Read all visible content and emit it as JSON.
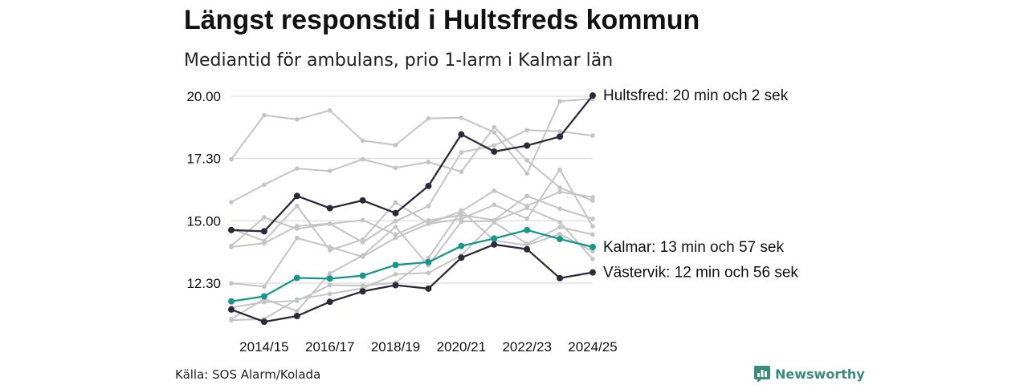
{
  "title": "Längst responstid i Hultsfreds kommun",
  "subtitle": "Mediantid för ambulans, prio 1-larm i Kalmar län",
  "source": "Källa: SOS Alarm/Kolada",
  "brand": "Newsworthy",
  "colors": {
    "highlight_dark": "#2b2a38",
    "kalmar": "#17968a",
    "background_lines": "#c4c4c4",
    "brand": "#3a8c7c"
  },
  "chart_data": {
    "type": "line",
    "y_axis": {
      "ticks": [
        "20.00",
        "17.30",
        "15.00",
        "12.30"
      ],
      "tick_values_minutes": [
        20,
        17.5,
        15,
        12.5
      ],
      "range_minutes": [
        10.8,
        20.4
      ],
      "grid": true
    },
    "x_axis": {
      "tick_labels": [
        "2014/15",
        "2016/17",
        "2018/19",
        "2020/21",
        "2022/23",
        "2024/25"
      ]
    },
    "seasons": [
      "2013/14",
      "2014/15",
      "2015/16",
      "2016/17",
      "2017/18",
      "2018/19",
      "2019/20",
      "2020/21",
      "2021/22",
      "2022/23",
      "2023/24",
      "2024/25"
    ],
    "series": [
      {
        "name": "Hultsfred",
        "label": "Hultsfred: 20 min och 2 sek",
        "emphasis": "dark",
        "values": [
          14.63,
          14.58,
          16.0,
          15.51,
          15.82,
          15.31,
          16.4,
          18.47,
          17.78,
          18.02,
          18.38,
          20.03
        ]
      },
      {
        "name": "Kalmar",
        "label": "Kalmar: 13 min och 57 sek",
        "emphasis": "accent",
        "values": [
          11.77,
          11.97,
          12.71,
          12.68,
          12.8,
          13.23,
          13.34,
          13.99,
          14.29,
          14.63,
          14.27,
          13.95
        ]
      },
      {
        "name": "Västervik",
        "label": "Västervik: 12 min och 56 sek",
        "emphasis": "dark",
        "values": [
          11.44,
          10.95,
          11.18,
          11.75,
          12.17,
          12.42,
          12.28,
          13.52,
          14.05,
          13.86,
          12.7,
          12.93
        ]
      },
      {
        "emphasis": "background",
        "values": [
          17.47,
          19.24,
          19.07,
          19.43,
          18.22,
          18.04,
          19.11,
          19.14,
          18.55,
          16.9,
          19.8,
          19.9
        ]
      },
      {
        "emphasis": "background",
        "values": [
          15.75,
          16.45,
          17.1,
          17.0,
          17.47,
          17.13,
          17.36,
          16.97,
          18.76,
          17.43,
          16.33,
          15.81
        ]
      },
      {
        "emphasis": "background",
        "values": [
          13.95,
          14.1,
          14.79,
          14.89,
          14.14,
          14.99,
          15.59,
          17.75,
          18.02,
          18.64,
          18.59,
          18.42
        ]
      },
      {
        "emphasis": "background",
        "values": [
          12.49,
          12.36,
          14.31,
          13.95,
          13.56,
          14.32,
          14.88,
          15.08,
          15.64,
          15.09,
          17.05,
          14.78
        ]
      },
      {
        "emphasis": "background",
        "values": [
          14.68,
          14.2,
          15.6,
          13.82,
          14.25,
          15.74,
          14.9,
          15.38,
          16.21,
          15.6,
          16.16,
          15.95
        ]
      },
      {
        "emphasis": "background",
        "values": [
          14.0,
          15.14,
          14.68,
          14.88,
          15.03,
          14.45,
          15.02,
          15.23,
          15.03,
          16.0,
          15.49,
          15.08
        ]
      },
      {
        "emphasis": "background",
        "values": [
          11.01,
          11.06,
          11.85,
          12.07,
          12.29,
          12.86,
          12.91,
          13.62,
          14.94,
          14.08,
          14.75,
          14.45
        ]
      },
      {
        "emphasis": "background",
        "values": [
          11.06,
          11.87,
          11.38,
          12.89,
          13.61,
          14.76,
          13.21,
          14.97,
          14.99,
          15.51,
          14.95,
          13.47
        ]
      },
      {
        "emphasis": "background",
        "values": [
          11.52,
          11.74,
          11.79,
          12.42,
          12.4,
          12.52,
          13.51,
          15.42,
          14.21,
          14.02,
          14.47,
          13.78
        ]
      }
    ]
  }
}
